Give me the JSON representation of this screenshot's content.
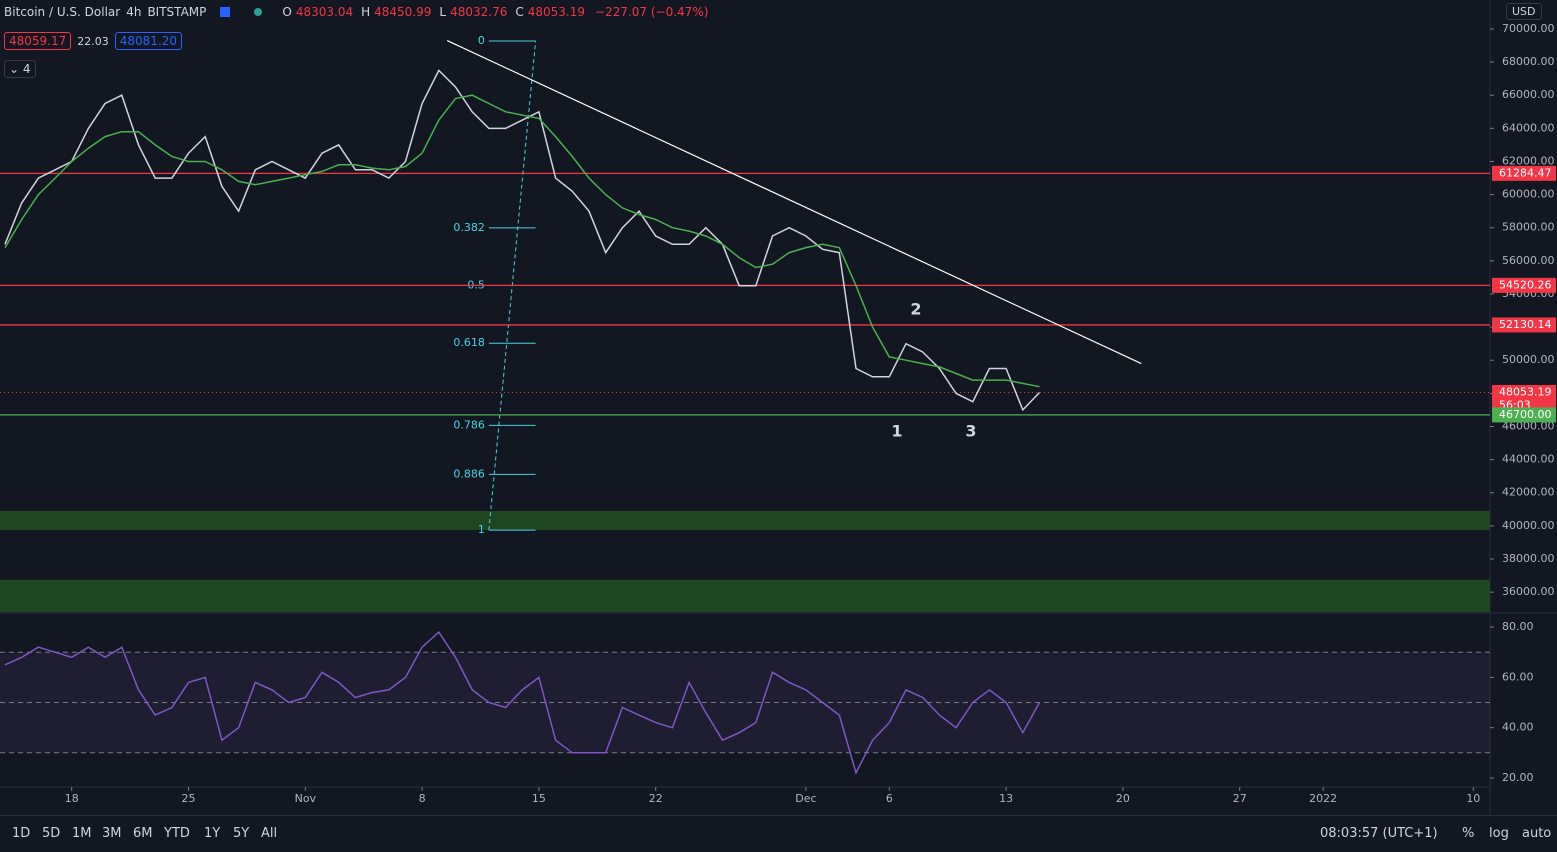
{
  "header": {
    "symbol": "Bitcoin / U.S. Dollar",
    "interval": "4h",
    "exchange": "BITSTAMP",
    "ohlc": [
      {
        "key": "O",
        "value": "48303.04"
      },
      {
        "key": "H",
        "value": "48450.99"
      },
      {
        "key": "L",
        "value": "48032.76"
      },
      {
        "key": "C",
        "value": "48053.19"
      }
    ],
    "change": "−227.07 (−0.47%)",
    "bid": "48059.17",
    "spread": "22.03",
    "ask": "48081.20",
    "indicators": "4",
    "currency": "USD"
  },
  "annotations": [
    "1",
    "2",
    "3"
  ],
  "toolbar": {
    "ranges": [
      "1D",
      "5D",
      "1M",
      "3M",
      "6M",
      "YTD",
      "1Y",
      "5Y",
      "All"
    ],
    "clock": "08:03:57 (UTC+1)",
    "options": [
      "%",
      "log",
      "auto"
    ]
  },
  "chart_data": [
    {
      "type": "line",
      "x": [
        14,
        15,
        16,
        17,
        18,
        19,
        20,
        21,
        22,
        23,
        24,
        25,
        26,
        27,
        28,
        29,
        30,
        31,
        32,
        33,
        34,
        35,
        36,
        37,
        38,
        39,
        40,
        41,
        42,
        43,
        44,
        45,
        46,
        47,
        48,
        49,
        50,
        51,
        52,
        53,
        54,
        55,
        56,
        57,
        58,
        59,
        60,
        61,
        62,
        63,
        64,
        65,
        66,
        67,
        68,
        69,
        70,
        71,
        72,
        73,
        74,
        75,
        76
      ],
      "series": [
        {
          "color": "#d1d4dc",
          "values": [
            57000,
            59500,
            61000,
            61500,
            62000,
            64000,
            65500,
            66000,
            63000,
            61000,
            61000,
            62500,
            63500,
            60500,
            59000,
            61500,
            62000,
            61500,
            61000,
            62500,
            63000,
            61500,
            61500,
            61000,
            62000,
            65500,
            67500,
            66500,
            65000,
            64000,
            64000,
            64500,
            65000,
            61000,
            60200,
            59000,
            56500,
            58000,
            59000,
            57500,
            57000,
            57000,
            58000,
            57000,
            54500,
            54500,
            57500,
            58000,
            57500,
            56700,
            56500,
            49500,
            49000,
            49000,
            51000,
            50500,
            49500,
            48000,
            47500,
            49500,
            49500,
            47000,
            48053
          ]
        },
        {
          "color": "#4caf50",
          "values": [
            56800,
            58500,
            60000,
            61000,
            62000,
            62800,
            63500,
            63800,
            63800,
            63000,
            62300,
            62000,
            62000,
            61500,
            60800,
            60600,
            60800,
            61000,
            61200,
            61400,
            61800,
            61800,
            61600,
            61500,
            61700,
            62500,
            64500,
            65800,
            66000,
            65500,
            65000,
            64800,
            64600,
            63500,
            62300,
            61000,
            60000,
            59200,
            58800,
            58500,
            58000,
            57800,
            57500,
            57000,
            56200,
            55600,
            55800,
            56500,
            56800,
            57000,
            56800,
            54500,
            52000,
            50200,
            50000,
            49800,
            49600,
            49200,
            48800,
            48800,
            48800,
            48600,
            48400
          ]
        }
      ],
      "xlim": [
        13.7,
        103
      ],
      "xticks": [
        {
          "value": 18,
          "label": "18"
        },
        {
          "value": 25,
          "label": "25"
        },
        {
          "value": 32,
          "label": "Nov"
        },
        {
          "value": 39,
          "label": "8"
        },
        {
          "value": 46,
          "label": "15"
        },
        {
          "value": 53,
          "label": "22"
        },
        {
          "value": 62,
          "label": "Dec"
        },
        {
          "value": 67,
          "label": "6"
        },
        {
          "value": 74,
          "label": "13"
        },
        {
          "value": 81,
          "label": "20"
        },
        {
          "value": 88,
          "label": "27"
        },
        {
          "value": 93,
          "label": "2022"
        },
        {
          "value": 102,
          "label": "10"
        }
      ],
      "ylim": [
        34800,
        71750
      ],
      "yticks": [
        {
          "value": 36000,
          "label": "36000.00"
        },
        {
          "value": 38000,
          "label": "38000.00"
        },
        {
          "value": 40000,
          "label": "40000.00"
        },
        {
          "value": 42000,
          "label": "42000.00"
        },
        {
          "value": 44000,
          "label": "44000.00"
        },
        {
          "value": 46000,
          "label": "46000.00"
        },
        {
          "value": 48000,
          "label": "48000.00"
        },
        {
          "value": 50000,
          "label": "50000.00"
        },
        {
          "value": 52000,
          "label": "52000.00"
        },
        {
          "value": 54000,
          "label": "54000.00"
        },
        {
          "value": 56000,
          "label": "56000.00"
        },
        {
          "value": 58000,
          "label": "58000.00"
        },
        {
          "value": 60000,
          "label": "60000.00"
        },
        {
          "value": 62000,
          "label": "62000.00"
        },
        {
          "value": 64000,
          "label": "64000.00"
        },
        {
          "value": 66000,
          "label": "66000.00"
        },
        {
          "value": 68000,
          "label": "68000.00"
        },
        {
          "value": 70000,
          "label": "70000.00"
        }
      ],
      "levels": [
        {
          "value": 61284.47,
          "color": "#f23645"
        },
        {
          "value": 54520.26,
          "color": "#f23645"
        },
        {
          "value": 52130.14,
          "color": "#f23645"
        },
        {
          "value": 48053.19,
          "color": "#f23645",
          "dotted": true,
          "countdown": "56:03"
        },
        {
          "value": 46700,
          "label": "46700.00",
          "color": "#4caf50"
        }
      ],
      "zones": [
        [
          39750,
          40900
        ],
        [
          34800,
          36750
        ]
      ],
      "zone_color": "#1e4620",
      "trendline": {
        "x": [
          40.5,
          82.1
        ],
        "y": [
          69300,
          49800
        ],
        "color": "#ffffff"
      },
      "fib": {
        "x": [
          43,
          45.8
        ],
        "high": 69275,
        "low": 39746,
        "levels": [
          0,
          0.382,
          0.5,
          0.618,
          0.786,
          0.886,
          1
        ],
        "color": "#4dd0e1"
      },
      "grid": false
    },
    {
      "type": "line",
      "x": [
        14,
        15,
        16,
        17,
        18,
        19,
        20,
        21,
        22,
        23,
        24,
        25,
        26,
        27,
        28,
        29,
        30,
        31,
        32,
        33,
        34,
        35,
        36,
        37,
        38,
        39,
        40,
        41,
        42,
        43,
        44,
        45,
        46,
        47,
        48,
        49,
        50,
        51,
        52,
        53,
        54,
        55,
        56,
        57,
        58,
        59,
        60,
        61,
        62,
        63,
        64,
        65,
        66,
        67,
        68,
        69,
        70,
        71,
        72,
        73,
        74,
        75,
        76
      ],
      "series": [
        {
          "color": "#7e57c2",
          "values": [
            65,
            68,
            72,
            70,
            68,
            72,
            68,
            72,
            55,
            45,
            48,
            58,
            60,
            35,
            40,
            58,
            55,
            50,
            52,
            62,
            58,
            52,
            54,
            55,
            60,
            72,
            78,
            68,
            55,
            50,
            48,
            55,
            60,
            35,
            30,
            30,
            30,
            48,
            45,
            42,
            40,
            58,
            46,
            35,
            38,
            42,
            62,
            58,
            55,
            50,
            45,
            22,
            35,
            42,
            55,
            52,
            45,
            40,
            50,
            55,
            50,
            38,
            50
          ]
        }
      ],
      "xlim": [
        13.7,
        103
      ],
      "ylim": [
        16.8,
        85.2
      ],
      "yticks": [
        {
          "value": 20,
          "label": "20.00"
        },
        {
          "value": 40,
          "label": "40.00"
        },
        {
          "value": 60,
          "label": "60.00"
        },
        {
          "value": 80,
          "label": "80.00"
        }
      ],
      "bands": [
        30,
        50,
        70
      ],
      "band_fill": "rgba(126,87,194,0.10)",
      "grid": false
    }
  ]
}
